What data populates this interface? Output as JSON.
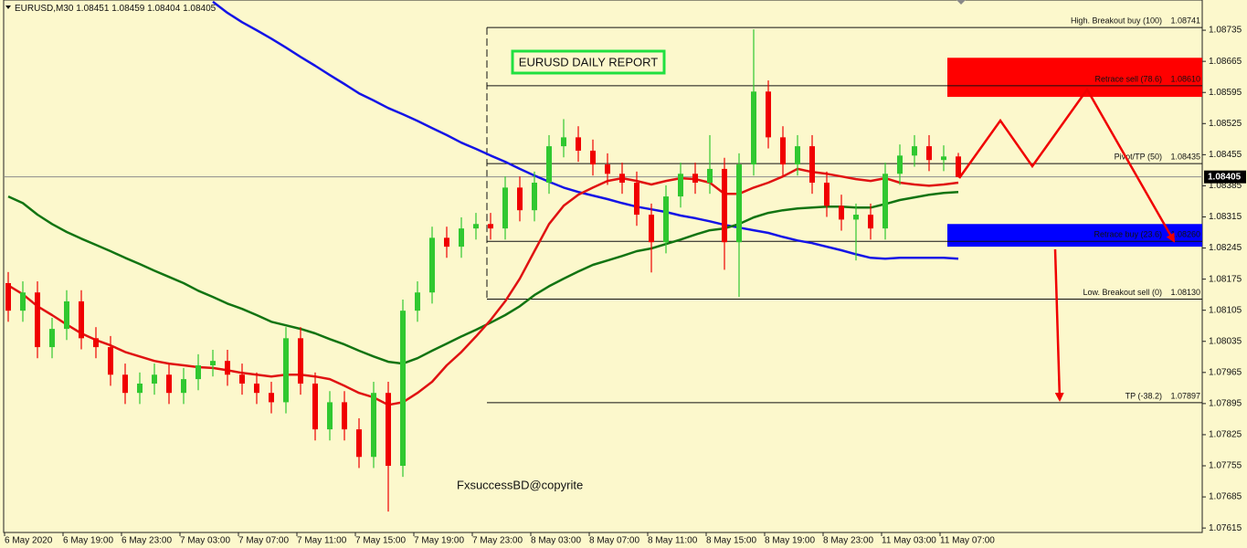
{
  "chart_data": {
    "type": "candlestick",
    "symbol": "EURUSD,M30",
    "title": "EURUSD DAILY REPORT",
    "watermark": "FxsuccessBD@copyrite",
    "categories": [
      "6 May 2020",
      null,
      null,
      null,
      "6 May 19:00",
      null,
      null,
      null,
      "6 May 23:00",
      null,
      null,
      null,
      "7 May 03:00",
      null,
      null,
      null,
      "7 May 07:00",
      null,
      null,
      null,
      "7 May 11:00",
      null,
      null,
      null,
      "7 May 15:00",
      null,
      null,
      null,
      "7 May 19:00",
      null,
      null,
      null,
      "7 May 23:00",
      null,
      null,
      null,
      "8 May 03:00",
      null,
      null,
      null,
      "8 May 07:00",
      null,
      null,
      null,
      "8 May 11:00",
      null,
      null,
      null,
      "8 May 15:00",
      null,
      null,
      null,
      "8 May 19:00",
      null,
      null,
      null,
      "8 May 23:00",
      null,
      null,
      null,
      "11 May 03:00",
      null,
      null,
      null,
      "11 May 07:00",
      null
    ],
    "open": [
      1.08166,
      1.08104,
      1.08145,
      1.08022,
      1.08063,
      1.08125,
      1.08042,
      1.08022,
      1.0796,
      1.07919,
      1.0794,
      1.0796,
      1.07919,
      1.0795,
      1.07981,
      1.07991,
      1.0796,
      1.0794,
      1.07919,
      1.07898,
      1.08042,
      1.0794,
      1.07837,
      1.07898,
      1.07837,
      1.07775,
      1.07919,
      1.07755,
      1.08104,
      1.08145,
      1.08268,
      1.08248,
      1.08289,
      1.08299,
      1.08289,
      1.08381,
      1.0833,
      1.08392,
      1.08474,
      1.08494,
      1.08464,
      1.08433,
      1.08412,
      1.08392,
      1.0832,
      1.08258,
      1.08361,
      1.08412,
      1.08392,
      1.08423,
      1.08258,
      1.08433,
      1.08597,
      1.08494,
      1.08433,
      1.08474,
      1.08392,
      1.0834,
      1.08309,
      1.0832,
      1.08289,
      1.08412,
      1.08453,
      1.08474,
      1.08443,
      1.08451
    ],
    "high": [
      1.08191,
      1.0817,
      1.0817,
      1.08088,
      1.0815,
      1.0815,
      1.08067,
      1.08047,
      1.07985,
      1.07965,
      1.07985,
      1.07985,
      1.07975,
      1.08006,
      1.08016,
      1.08016,
      1.07985,
      1.07965,
      1.07944,
      1.08067,
      1.08067,
      1.07965,
      1.07923,
      1.07923,
      1.07862,
      1.07944,
      1.07944,
      1.08129,
      1.0817,
      1.08293,
      1.08293,
      1.08314,
      1.08324,
      1.08324,
      1.08406,
      1.08406,
      1.08417,
      1.08499,
      1.08535,
      1.08519,
      1.08489,
      1.08458,
      1.08437,
      1.08417,
      1.08345,
      1.08386,
      1.08437,
      1.08437,
      1.08499,
      1.08448,
      1.08458,
      1.08737,
      1.08622,
      1.08519,
      1.08499,
      1.08499,
      1.08417,
      1.08365,
      1.08345,
      1.08345,
      1.08437,
      1.08478,
      1.08499,
      1.08499,
      1.08476,
      1.08459
    ],
    "low": [
      1.08079,
      1.08079,
      1.07997,
      1.07997,
      1.08038,
      1.08017,
      1.07997,
      1.07935,
      1.07894,
      1.07894,
      1.07915,
      1.07894,
      1.07894,
      1.07925,
      1.07956,
      1.07935,
      1.07915,
      1.07894,
      1.07873,
      1.07873,
      1.07915,
      1.07812,
      1.07812,
      1.07812,
      1.0775,
      1.0775,
      1.07652,
      1.0773,
      1.08079,
      1.0812,
      1.08223,
      1.08223,
      1.08264,
      1.08264,
      1.08264,
      1.08305,
      1.08305,
      1.08367,
      1.08449,
      1.08439,
      1.08408,
      1.08387,
      1.08367,
      1.08295,
      1.0819,
      1.08233,
      1.08336,
      1.08367,
      1.08367,
      1.08196,
      1.08135,
      1.08408,
      1.08469,
      1.08408,
      1.08408,
      1.08367,
      1.08315,
      1.08284,
      1.08217,
      1.08264,
      1.08264,
      1.08387,
      1.08428,
      1.08418,
      1.08418,
      1.08404
    ],
    "close": [
      1.08104,
      1.08145,
      1.08022,
      1.08063,
      1.08125,
      1.08042,
      1.08022,
      1.0796,
      1.07919,
      1.0794,
      1.0796,
      1.07919,
      1.0795,
      1.07981,
      1.07991,
      1.0796,
      1.0794,
      1.07919,
      1.07898,
      1.08042,
      1.0794,
      1.07837,
      1.07898,
      1.07837,
      1.07775,
      1.07919,
      1.07755,
      1.08104,
      1.08145,
      1.08268,
      1.08248,
      1.08289,
      1.08299,
      1.08289,
      1.08381,
      1.0833,
      1.08392,
      1.08474,
      1.08494,
      1.08464,
      1.08433,
      1.08412,
      1.08392,
      1.0832,
      1.08258,
      1.08361,
      1.08412,
      1.08392,
      1.08423,
      1.08258,
      1.08433,
      1.08597,
      1.08494,
      1.08433,
      1.08474,
      1.08392,
      1.0834,
      1.08309,
      1.0832,
      1.08289,
      1.08412,
      1.08453,
      1.08474,
      1.08443,
      1.08451,
      1.08405
    ],
    "up_color": "#30c830",
    "down_color": "#f00000",
    "lines": [
      {
        "color": "#1414e6",
        "values": [
          null,
          null,
          null,
          null,
          null,
          null,
          null,
          null,
          null,
          null,
          null,
          null,
          null,
          null,
          1.08799,
          1.08774,
          1.08753,
          1.08735,
          1.08716,
          1.08696,
          1.08675,
          1.08655,
          1.08634,
          1.08614,
          1.08593,
          1.08577,
          1.0856,
          1.08546,
          1.08531,
          1.08515,
          1.08499,
          1.08482,
          1.08468,
          1.08453,
          1.08439,
          1.08423,
          1.08408,
          1.08394,
          1.08381,
          1.08371,
          1.08363,
          1.08355,
          1.08346,
          1.08338,
          1.08332,
          1.08326,
          1.08318,
          1.08312,
          1.08305,
          1.08297,
          1.08291,
          1.08285,
          1.08279,
          1.0827,
          1.08262,
          1.08256,
          1.08248,
          1.0824,
          1.08231,
          1.08223,
          1.08221,
          1.08223,
          1.08223,
          1.08223,
          1.08223,
          1.08221
        ]
      },
      {
        "color": "#127412",
        "values": [
          1.08361,
          1.08346,
          1.0832,
          1.08299,
          1.08281,
          1.08266,
          1.08252,
          1.08238,
          1.08223,
          1.08209,
          1.08194,
          1.0818,
          1.08166,
          1.08149,
          1.08135,
          1.0812,
          1.08108,
          1.08094,
          1.08079,
          1.08071,
          1.08063,
          1.08053,
          1.0804,
          1.08028,
          1.08014,
          1.08001,
          1.07989,
          1.07985,
          1.07997,
          1.08014,
          1.0803,
          1.08046,
          1.08061,
          1.08077,
          1.08094,
          1.08114,
          1.08139,
          1.08159,
          1.08176,
          1.08192,
          1.08207,
          1.08217,
          1.08227,
          1.08238,
          1.08244,
          1.08254,
          1.08264,
          1.08275,
          1.08285,
          1.08289,
          1.08299,
          1.08314,
          1.08324,
          1.0833,
          1.08334,
          1.08336,
          1.08338,
          1.08338,
          1.08336,
          1.08336,
          1.08344,
          1.08353,
          1.08359,
          1.08365,
          1.08369,
          1.08371
        ]
      },
      {
        "color": "#e01212",
        "values": [
          1.08161,
          1.08141,
          1.08114,
          1.08094,
          1.08073,
          1.08053,
          1.08038,
          1.08026,
          1.08011,
          1.08001,
          1.07991,
          1.07985,
          1.07981,
          1.07977,
          1.07975,
          1.0797,
          1.07964,
          1.0796,
          1.07956,
          1.0796,
          1.0796,
          1.07956,
          1.0795,
          1.07935,
          1.07919,
          1.07909,
          1.07892,
          1.07898,
          1.07919,
          1.07944,
          1.07981,
          1.08011,
          1.08046,
          1.08083,
          1.08125,
          1.08176,
          1.08238,
          1.08299,
          1.0834,
          1.08365,
          1.08381,
          1.08396,
          1.08402,
          1.08396,
          1.08388,
          1.08396,
          1.08402,
          1.084,
          1.08392,
          1.08367,
          1.08367,
          1.08381,
          1.08392,
          1.08406,
          1.08423,
          1.08416,
          1.08412,
          1.08406,
          1.084,
          1.08396,
          1.08402,
          1.08392,
          1.08388,
          1.08385,
          1.08388,
          1.08392
        ]
      }
    ],
    "levels": [
      {
        "name": "High. Breakout buy (100)",
        "value": 1.08741
      },
      {
        "name": "Retrace sell (78.6)",
        "value": 1.0861,
        "value_label": "1.08610"
      },
      {
        "name": "Pivot/TP (50)",
        "value": 1.08435
      },
      {
        "name": "Retrace buy (23.6)",
        "value": 1.0826,
        "value_label": "1.08260"
      },
      {
        "name": "Low. Breakout sell (0)",
        "value": 1.0813,
        "value_label": "1.08130"
      },
      {
        "name": "TP (-38.2)",
        "value": 1.07897
      }
    ],
    "zones": [
      {
        "color": "#ff0000",
        "ylim": [
          1.08585,
          1.08673
        ]
      },
      {
        "color": "#0000ff",
        "ylim": [
          1.08248,
          1.08299
        ]
      }
    ],
    "ylim": [
      1.07605,
      1.08803
    ],
    "yticks": [
      1.07615,
      1.07685,
      1.07755,
      1.07825,
      1.07895,
      1.07965,
      1.08035,
      1.08105,
      1.08175,
      1.08245,
      1.08315,
      1.08385,
      1.08455,
      1.08525,
      1.08595,
      1.08665,
      1.08735
    ]
  }
}
